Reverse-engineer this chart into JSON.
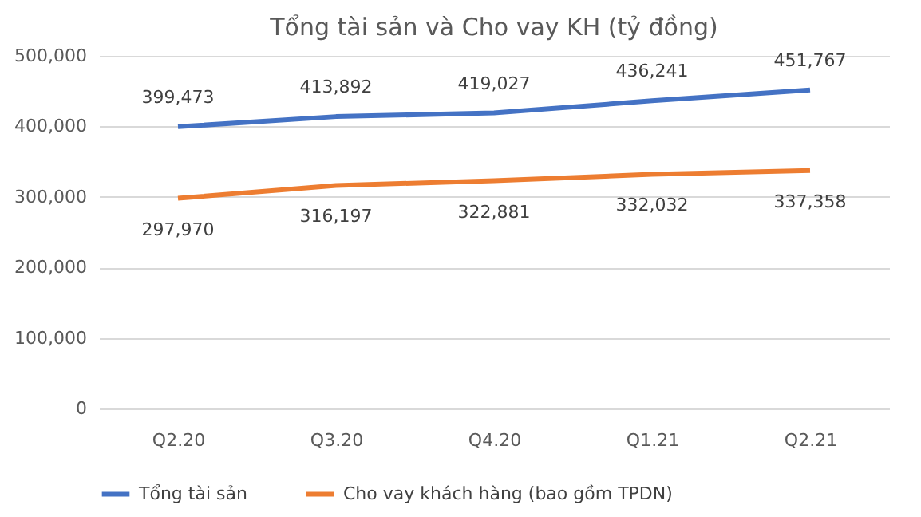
{
  "chart_data": {
    "type": "line",
    "title": "Tổng tài sản và Cho vay KH (tỷ đồng)",
    "categories": [
      "Q2.20",
      "Q3.20",
      "Q4.20",
      "Q1.21",
      "Q2.21"
    ],
    "series": [
      {
        "name": "Tổng tài sản",
        "color": "#4472c4",
        "values": [
          399473,
          413892,
          419027,
          436241,
          451767
        ],
        "value_labels": [
          "399,473",
          "413,892",
          "419,027",
          "436,241",
          "451,767"
        ]
      },
      {
        "name": "Cho vay khách hàng (bao gồm TPDN)",
        "color": "#ed7d31",
        "values": [
          297970,
          316197,
          322881,
          332032,
          337358
        ],
        "value_labels": [
          "297,970",
          "316,197",
          "322,881",
          "332,032",
          "337,358"
        ]
      }
    ],
    "ylim": [
      0,
      500000
    ],
    "yticks": [
      0,
      {
        "value": 100000,
        "label": "100,000"
      },
      {
        "value": 200000,
        "label": "200,000"
      },
      {
        "value": 300000,
        "label": "300,000"
      },
      {
        "value": 400000,
        "label": "400,000"
      },
      {
        "value": 500000,
        "label": "500,000"
      }
    ],
    "grid": "y",
    "legend": "bottom",
    "marker": "none",
    "line_style": "solid"
  }
}
